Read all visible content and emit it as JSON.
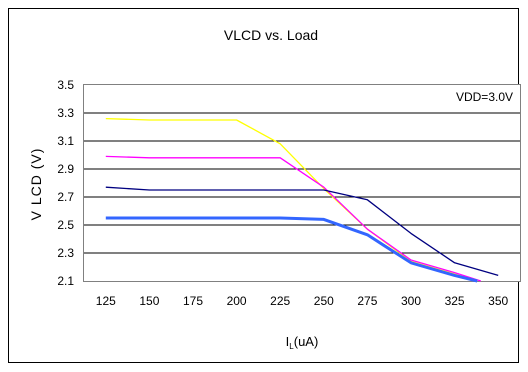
{
  "chart_data": {
    "type": "line",
    "title": "VLCD vs. Load",
    "xlabel": {
      "main": "I",
      "sub": "L",
      "unit": "(uA)"
    },
    "ylabel": "V LCD (V)",
    "annotation": "VDD=3.0V",
    "x": [
      125,
      150,
      175,
      200,
      225,
      250,
      275,
      300,
      325,
      350
    ],
    "xticks": [
      "125",
      "150",
      "175",
      "200",
      "225",
      "250",
      "275",
      "300",
      "325",
      "350"
    ],
    "xlim": [
      112.5,
      362.5
    ],
    "ylim": [
      2.1,
      3.5
    ],
    "yticks": [
      "2.1",
      "2.3",
      "2.5",
      "2.7",
      "2.9",
      "3.1",
      "3.3",
      "3.5"
    ],
    "grid": "horizontal",
    "series": [
      {
        "color": "#ffff00",
        "width": 1.3,
        "points": [
          [
            125,
            3.26
          ],
          [
            150,
            3.25
          ],
          [
            200,
            3.25
          ],
          [
            225,
            3.08
          ],
          [
            250,
            2.76
          ],
          [
            275,
            2.47
          ],
          [
            300,
            2.24
          ],
          [
            325,
            2.15
          ],
          [
            338,
            2.1
          ]
        ]
      },
      {
        "color": "#ff00ff",
        "width": 1.3,
        "points": [
          [
            125,
            2.99
          ],
          [
            150,
            2.98
          ],
          [
            225,
            2.98
          ],
          [
            250,
            2.77
          ],
          [
            275,
            2.47
          ],
          [
            300,
            2.25
          ],
          [
            325,
            2.16
          ],
          [
            340,
            2.1
          ]
        ]
      },
      {
        "color": "#000080",
        "width": 1.3,
        "points": [
          [
            125,
            2.77
          ],
          [
            150,
            2.75
          ],
          [
            250,
            2.75
          ],
          [
            275,
            2.68
          ],
          [
            300,
            2.44
          ],
          [
            325,
            2.23
          ],
          [
            350,
            2.14
          ]
        ]
      },
      {
        "color": "#3366ff",
        "width": 3,
        "points": [
          [
            125,
            2.55
          ],
          [
            150,
            2.55
          ],
          [
            225,
            2.55
          ],
          [
            250,
            2.54
          ],
          [
            275,
            2.43
          ],
          [
            300,
            2.23
          ],
          [
            325,
            2.14
          ],
          [
            338,
            2.1
          ]
        ]
      }
    ]
  }
}
